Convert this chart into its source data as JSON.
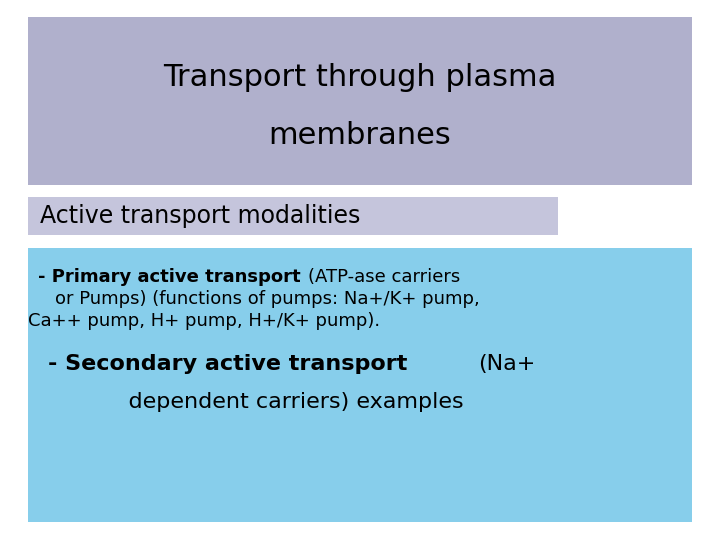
{
  "title_text_line1": "Transport through plasma",
  "title_text_line2": "membranes",
  "subtitle_text": "Active transport modalities",
  "bg_color": "#ffffff",
  "title_box_color": "#b0b0cc",
  "subtitle_box_color": "#c5c5dc",
  "body_box_color": "#87ceeb",
  "text_color": "#000000",
  "title_fontsize": 22,
  "subtitle_fontsize": 17,
  "body_fontsize_small": 13,
  "body_fontsize_large": 16,
  "line1_bold": "- Primary active transport ",
  "line1_normal": "(ATP-ase carriers",
  "line2_normal": "or Pumps) (functions of pumps: Na+/K+ pump,",
  "line3_normal": "Ca++ pump, H+ pump, H+/K+ pump).",
  "line4_bold": "- Secondary active transport ",
  "line4_normal": "(Na+",
  "line5_normal": "    dependent carriers) examples"
}
